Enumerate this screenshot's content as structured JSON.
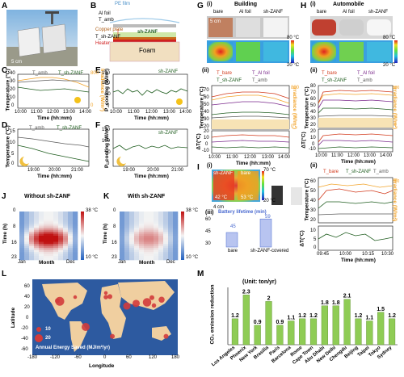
{
  "panels": {
    "A": {
      "letter": "A",
      "scale": "5 cm"
    },
    "B": {
      "letter": "B",
      "layers": [
        "PE film",
        "Al foil",
        "T_amb",
        "Copper plate",
        "T_sh-ZANF",
        "Heater",
        "sh-ZANF",
        "Foam"
      ]
    },
    "C": {
      "letter": "C",
      "ylabel": "Temperature (°C)",
      "y2label": "Irradiance (W/m²)",
      "xlabel": "Time (hh:mm)",
      "xticks": [
        "10:00",
        "11:00",
        "12:00",
        "13:00",
        "14:00"
      ],
      "yticks": [
        0,
        10,
        20,
        30,
        40
      ],
      "y2ticks": [
        0,
        200,
        400,
        600,
        800
      ],
      "legend": [
        "T_amb",
        "T_sh-ZANF"
      ]
    },
    "D": {
      "letter": "D",
      "ylabel": "Temperature (°C)",
      "xlabel": "Time (hh:mm)",
      "xticks": [
        "19:00",
        "20:00",
        "21:00"
      ],
      "yticks": [
        0,
        5,
        10,
        15
      ],
      "legend": [
        "T_amb",
        "T_sh-ZANF"
      ]
    },
    "E": {
      "letter": "E",
      "ylabel": "P_cooling (W/m²)",
      "xlabel": "Time (hh:mm)",
      "xticks": [
        "10:00",
        "11:00",
        "12:00",
        "13:00",
        "14:00"
      ],
      "yticks": [
        0,
        50,
        100,
        150
      ],
      "legend": [
        "sh-ZANF"
      ]
    },
    "F": {
      "letter": "F",
      "ylabel": "P_cooling (W/m²)",
      "xlabel": "Time (hh:mm)",
      "xticks": [
        "19:00",
        "20:00",
        "21:00"
      ],
      "yticks": [
        0,
        50,
        100,
        150
      ],
      "legend": [
        "sh-ZANF"
      ]
    },
    "G": {
      "letter": "G",
      "title_i": "(i)",
      "title": "Building",
      "photo_labels": [
        "bare",
        "Al foil",
        "sh-ZANF"
      ],
      "scale": "5 cm",
      "cbar_max": "80 °C",
      "cbar_min": "20 °C",
      "sub_ii": "(ii)",
      "legend": [
        "T_bare",
        "T_Al foil",
        "T_sh-ZANF",
        "T_amb"
      ],
      "ylabel": "Temperature (°C)",
      "y2label": "Irradiance (W/m²)",
      "dlabel": "ΔT(°C)",
      "xlabel": "Time (hh:mm)",
      "xticks": [
        "10:00",
        "11:00",
        "12:00",
        "13:00",
        "14:00"
      ],
      "yticks": [
        20,
        30,
        40,
        50,
        60,
        70
      ],
      "y2ticks": [
        0,
        200,
        400,
        600,
        800
      ],
      "dticks": [
        -10,
        0,
        10,
        20
      ]
    },
    "H": {
      "letter": "H",
      "title_i": "(i)",
      "title": "Automobile",
      "photo_labels": [
        "bare",
        "Al foil",
        "sh-ZANF"
      ],
      "cbar_max": "80 °C",
      "cbar_min": "20 °C",
      "sub_ii": "(ii)",
      "legend": [
        "T_bare",
        "T_Al foil",
        "T_sh-ZANF",
        "T_amb"
      ],
      "ylabel": "Temperature (°C)",
      "y2label": "Irradiance (W/m²)",
      "dlabel": "ΔT(°C)",
      "xlabel": "Time (hh:mm)",
      "xticks": [
        "10:00",
        "11:00",
        "12:00",
        "13:00",
        "14:00"
      ],
      "yticks": [
        20,
        30,
        40,
        50,
        60,
        70,
        80
      ],
      "y2ticks": [
        0,
        200,
        400,
        600,
        800
      ],
      "dticks": [
        -10,
        0,
        10,
        20
      ]
    },
    "I": {
      "letter": "I",
      "sub_i": "(i)",
      "sub_ii": "(ii)",
      "sub_iii": "(iii)",
      "thermal_labels": [
        "sh-ZANF",
        "bare",
        "42 °C",
        "53 °C"
      ],
      "cbar_max": "70 °C",
      "cbar_min": "20 °C",
      "scale": "4 cm",
      "battery_title": "Battery lifetime (min)",
      "bars": [
        {
          "label": "bare",
          "value": 45
        },
        {
          "label": "sh-ZANF-covered",
          "value": 59
        }
      ],
      "yticks": [
        30,
        45,
        60
      ],
      "legend_ii": [
        "T_bare",
        "T_sh-ZANF",
        "T_amb"
      ],
      "ylabel_ii": "Temperature (°C)",
      "y2label_ii": "Irradiance (W/m²)",
      "dlabel_ii": "ΔT(°C)",
      "xlabel_ii": "Time (hh:mm)",
      "xticks_ii": [
        "09:45",
        "10:00",
        "10:15",
        "10:30"
      ],
      "yticks_ii": [
        20,
        30,
        40,
        50,
        60
      ],
      "y2ticks_ii": [
        0,
        200,
        400,
        600,
        800
      ],
      "dticks_ii": [
        0,
        5,
        10
      ]
    },
    "J": {
      "letter": "J",
      "title": "Without sh-ZANF",
      "ylabel": "Time (h)",
      "xlabel": "Month",
      "xticks": [
        "Jan",
        "Dec"
      ],
      "yticks": [
        0,
        8,
        16,
        23
      ],
      "cbar_max": "38 °C",
      "cbar_min": "10 °C"
    },
    "K": {
      "letter": "K",
      "title": "With sh-ZANF",
      "ylabel": "Time (h)",
      "xlabel": "Month",
      "xticks": [
        "Jan",
        "Dec"
      ],
      "yticks": [
        0,
        8,
        16,
        23
      ],
      "cbar_max": "38 °C",
      "cbar_min": "10 °C"
    },
    "L": {
      "letter": "L",
      "ylabel": "Latitude",
      "xlabel": "Longitude",
      "xticks": [
        -180,
        -120,
        -60,
        0,
        60,
        120,
        180
      ],
      "yticks": [
        -60,
        -40,
        -20,
        0,
        20,
        40,
        60
      ],
      "legend_values": [
        "10",
        "20"
      ],
      "caption": "Annual Energy Saved (MJ/m²/yr)"
    },
    "M": {
      "letter": "M",
      "unit": "(Unit: ton/yr)",
      "ylabel": "CO₂ emission reduction"
    }
  },
  "chart_data": [
    {
      "type": "bar",
      "id": "M",
      "categories": [
        "Los Angeles",
        "Phoenix",
        "New York",
        "Brasilia",
        "Paris",
        "Barcelona",
        "Rome",
        "Cape Town",
        "Abu Dhabi",
        "New Delhi",
        "Chengdu",
        "Beijing",
        "Taipei",
        "Tokyo",
        "Sydney"
      ],
      "values": [
        1.2,
        2.3,
        0.9,
        2.0,
        0.9,
        1.1,
        1.2,
        1.2,
        1.8,
        1.8,
        2.1,
        1.2,
        1.1,
        1.5,
        1.2
      ],
      "ylim": [
        0,
        2.5
      ]
    },
    {
      "type": "bar",
      "id": "I-iii",
      "categories": [
        "bare",
        "sh-ZANF-covered"
      ],
      "values": [
        45,
        59
      ],
      "ylim": [
        30,
        60
      ]
    },
    {
      "type": "scatter",
      "id": "L",
      "xlim": [
        -180,
        180
      ],
      "ylim": [
        -70,
        75
      ],
      "points": [
        {
          "lon": -118,
          "lat": 34,
          "size": 12
        },
        {
          "lon": -112,
          "lat": 33,
          "size": 22
        },
        {
          "lon": -74,
          "lat": 41,
          "size": 9
        },
        {
          "lon": -48,
          "lat": -16,
          "size": 20
        },
        {
          "lon": 2,
          "lat": 49,
          "size": 9
        },
        {
          "lon": 2,
          "lat": 41,
          "size": 11
        },
        {
          "lon": 12,
          "lat": 42,
          "size": 12
        },
        {
          "lon": 18,
          "lat": -34,
          "size": 12
        },
        {
          "lon": 54,
          "lat": 24,
          "size": 18
        },
        {
          "lon": 77,
          "lat": 29,
          "size": 18
        },
        {
          "lon": 104,
          "lat": 31,
          "size": 21
        },
        {
          "lon": 116,
          "lat": 40,
          "size": 12
        },
        {
          "lon": 121,
          "lat": 25,
          "size": 11
        },
        {
          "lon": 140,
          "lat": 36,
          "size": 15
        },
        {
          "lon": 151,
          "lat": -34,
          "size": 12
        }
      ]
    }
  ],
  "colors": {
    "amb": "#5a5a5a",
    "sh": "#1f5d1f",
    "irr": "#f2a42b",
    "bare": "#d23a1c",
    "al": "#7b2a8c",
    "bar": "#8fcc55",
    "ocean": "#2d5aa0",
    "land": "#f0cfa0",
    "dot": "#d13b3b"
  }
}
